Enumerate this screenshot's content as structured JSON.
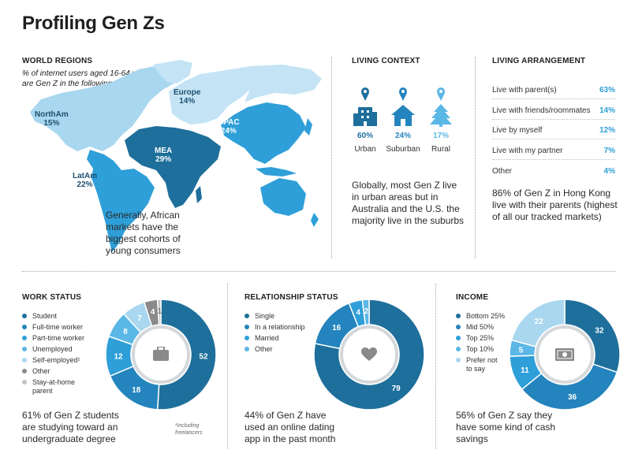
{
  "page": {
    "title": "Profiling Gen Zs"
  },
  "world": {
    "heading": "WORLD REGIONS",
    "subtitle": "% of internet users aged 16-64 who are Gen Z in the following regions:",
    "regions": [
      {
        "name": "NorthAm",
        "value": "15%"
      },
      {
        "name": "Europe",
        "value": "14%"
      },
      {
        "name": "APAC",
        "value": "24%"
      },
      {
        "name": "MEA",
        "value": "29%"
      },
      {
        "name": "LatAm",
        "value": "22%"
      }
    ],
    "note": "Generally, African markets have the biggest cohorts of young consumers",
    "colors": {
      "NorthAm": "#a9d7ef",
      "Europe": "#c4e4f5",
      "APAC": "#2e9fd8",
      "MEA": "#1e6f9b",
      "LatAm": "#2e9fd8",
      "Oceania": "#2e9fd8"
    }
  },
  "living_context": {
    "heading": "LIVING CONTEXT",
    "items": [
      {
        "icon": "city-buildings-icon",
        "pct": "60%",
        "label": "Urban"
      },
      {
        "icon": "house-icon",
        "pct": "24%",
        "label": "Suburban"
      },
      {
        "icon": "tree-icon",
        "pct": "17%",
        "label": "Rural"
      }
    ],
    "note": "Globally, most Gen Z live in urban areas but in Australia and the U.S. the majority live in the suburbs"
  },
  "living_arrangement": {
    "heading": "LIVING ARRANGEMENT",
    "rows": [
      {
        "label": "Live with parent(s)",
        "pct": "63%"
      },
      {
        "label": "Live with friends/roommates",
        "pct": "14%"
      },
      {
        "label": "Live by myself",
        "pct": "12%"
      },
      {
        "label": "Live with my partner",
        "pct": "7%"
      },
      {
        "label": "Other",
        "pct": "4%"
      }
    ],
    "note": "86% of Gen Z in Hong Kong live with their parents (highest of all our tracked markets)"
  },
  "work": {
    "heading": "WORK STATUS",
    "note": "61% of Gen Z students are studying toward an undergraduate degree",
    "footnote": "¹Including freelancers",
    "icon": "briefcase-icon"
  },
  "relationship": {
    "heading": "RELATIONSHIP STATUS",
    "note": "44% of Gen Z have used an online dating app in the past month",
    "icon": "heart-icon"
  },
  "income": {
    "heading": "INCOME",
    "note": "56% of Gen Z say they have some kind of cash savings",
    "icon": "banknote-icon"
  },
  "chart_data": [
    {
      "type": "pie",
      "id": "work",
      "categories": [
        "Student",
        "Full-time worker",
        "Part-time worker",
        "Unemployed",
        "Self-employed¹",
        "Other",
        "Stay-at-home parent"
      ],
      "values": [
        52,
        18,
        12,
        8,
        7,
        4,
        1
      ],
      "labels": [
        "52",
        "18",
        "12",
        "8",
        "7",
        "4",
        "1"
      ],
      "colors": [
        "#1e6f9b",
        "#2484bd",
        "#2e9fd8",
        "#5ab7e6",
        "#a9d7ef",
        "#8a8a8a",
        "#c4c4c4"
      ]
    },
    {
      "type": "pie",
      "id": "relationship",
      "categories": [
        "Single",
        "In a relationship",
        "Married",
        "Other"
      ],
      "values": [
        79,
        16,
        4,
        2
      ],
      "labels": [
        "79",
        "16",
        "4",
        "2"
      ],
      "colors": [
        "#1e6f9b",
        "#2484bd",
        "#2e9fd8",
        "#5ab7e6"
      ]
    },
    {
      "type": "pie",
      "id": "income",
      "categories": [
        "Bottom 25%",
        "Mid 50%",
        "Top 25%",
        "Top 10%",
        "Prefer not to say"
      ],
      "values": [
        32,
        36,
        11,
        5,
        22
      ],
      "labels": [
        "32",
        "36",
        "11",
        "5",
        "22"
      ],
      "colors": [
        "#1e6f9b",
        "#2484bd",
        "#2e9fd8",
        "#5ab7e6",
        "#a9d7ef"
      ]
    }
  ]
}
